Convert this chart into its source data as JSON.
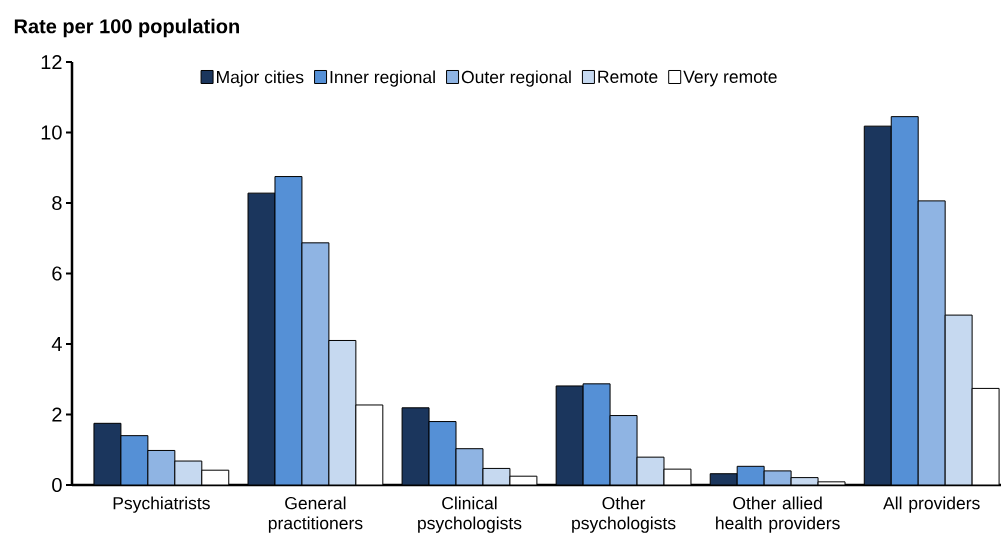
{
  "chart_data": {
    "type": "bar",
    "ylabel": "Rate per 100 population",
    "categories": [
      "Psychiatrists",
      "General practitioners",
      "Clinical psychologists",
      "Other psychologists",
      "Other allied health providers",
      "All providers"
    ],
    "series": [
      {
        "name": "Major cities",
        "color": "#1b365d",
        "values": [
          1.75,
          8.28,
          2.19,
          2.81,
          0.32,
          10.18
        ]
      },
      {
        "name": "Inner regional",
        "color": "#5590d6",
        "values": [
          1.4,
          8.75,
          1.8,
          2.87,
          0.53,
          10.45
        ]
      },
      {
        "name": "Outer regional",
        "color": "#8fb4e3",
        "values": [
          0.98,
          6.87,
          1.03,
          1.97,
          0.4,
          8.06
        ]
      },
      {
        "name": "Remote",
        "color": "#c6d9f0",
        "values": [
          0.68,
          4.1,
          0.47,
          0.79,
          0.21,
          4.82
        ]
      },
      {
        "name": "Very remote",
        "color": "#ffffff",
        "values": [
          0.42,
          2.27,
          0.25,
          0.45,
          0.09,
          2.74
        ]
      }
    ],
    "ylim": [
      0,
      12
    ],
    "yticks": [
      0,
      2,
      4,
      6,
      8,
      10,
      12
    ],
    "grid": false,
    "legend": "top"
  }
}
